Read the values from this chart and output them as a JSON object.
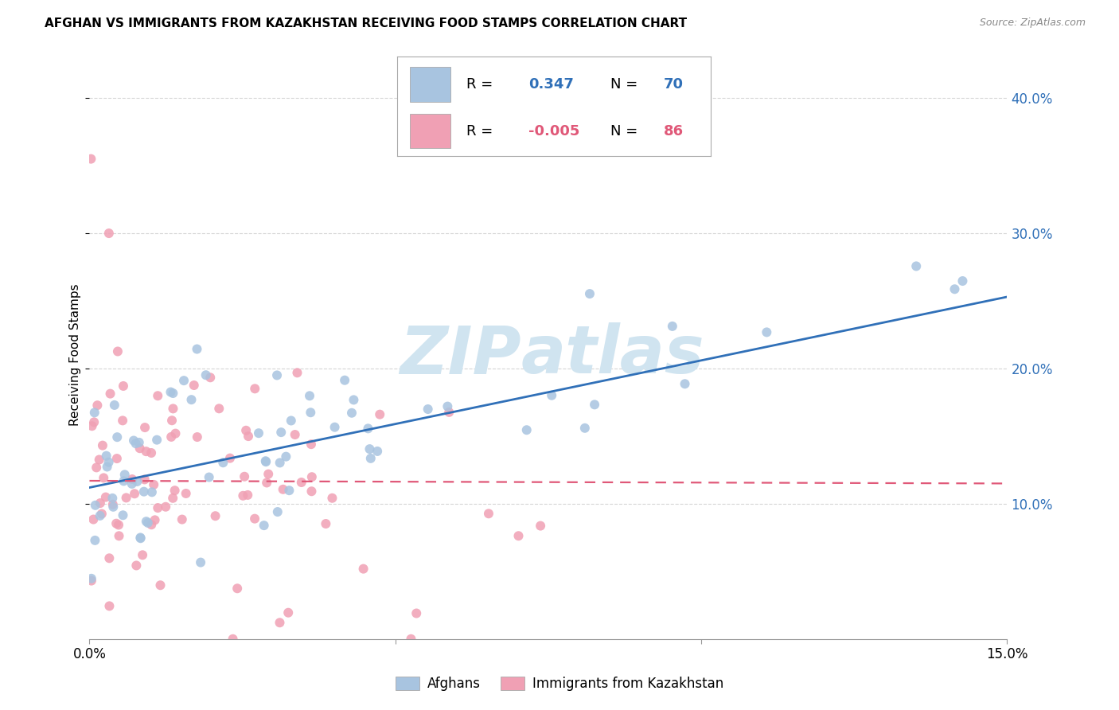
{
  "title": "AFGHAN VS IMMIGRANTS FROM KAZAKHSTAN RECEIVING FOOD STAMPS CORRELATION CHART",
  "source": "Source: ZipAtlas.com",
  "ylabel": "Receiving Food Stamps",
  "xlim": [
    0.0,
    0.15
  ],
  "ylim": [
    0.0,
    0.42
  ],
  "yticks": [
    0.1,
    0.2,
    0.3,
    0.4
  ],
  "ytick_labels": [
    "10.0%",
    "20.0%",
    "30.0%",
    "40.0%"
  ],
  "xticks": [
    0.0,
    0.05,
    0.1,
    0.15
  ],
  "xtick_labels": [
    "0.0%",
    "",
    "",
    "15.0%"
  ],
  "legend_r_afghan": "0.347",
  "legend_n_afghan": "70",
  "legend_r_kazakh": "-0.005",
  "legend_n_kazakh": "86",
  "afghan_color": "#a8c4e0",
  "kazakh_color": "#f0a0b4",
  "afghan_line_color": "#3070b8",
  "kazakh_line_color": "#e05878",
  "watermark_color": "#d0e4f0",
  "background_color": "#ffffff",
  "grid_color": "#cccccc",
  "right_axis_color": "#3070b8",
  "afghan_line_x0": 0.0,
  "afghan_line_y0": 0.112,
  "afghan_line_x1": 0.15,
  "afghan_line_y1": 0.253,
  "kazakh_line_x0": 0.0,
  "kazakh_line_y0": 0.117,
  "kazakh_line_x1": 0.15,
  "kazakh_line_y1": 0.115
}
